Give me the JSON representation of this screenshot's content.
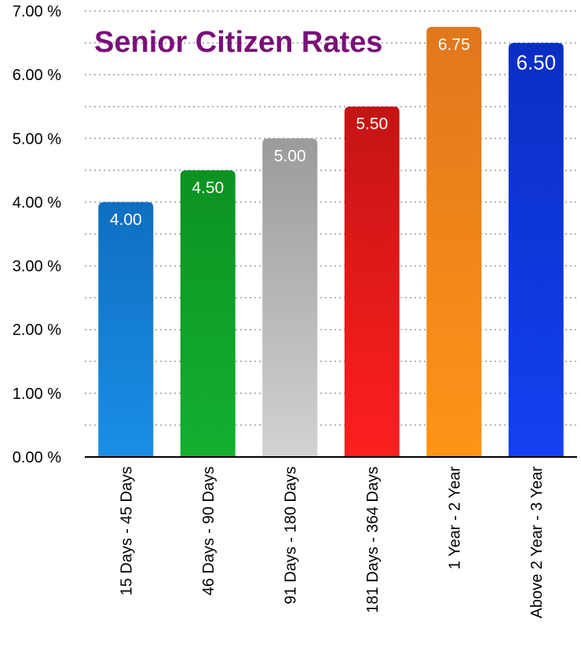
{
  "chart_data": {
    "type": "bar",
    "title": "Senior Citizen Rates",
    "title_color": "#7a0f7a",
    "categories": [
      "15 Days - 45 Days",
      "46 Days - 90 Days",
      "91 Days - 180 Days",
      "181 Days - 364 Days",
      "1 Year - 2 Year",
      "Above 2 Year - 3 Year"
    ],
    "values": [
      4.0,
      4.5,
      5.0,
      5.5,
      6.75,
      6.5
    ],
    "value_labels": [
      "4.00",
      "4.50",
      "5.00",
      "5.50",
      "6.75",
      "6.50"
    ],
    "bar_colors": [
      [
        "#0f6fc0",
        "#1a8ee6"
      ],
      [
        "#0c9222",
        "#13b030"
      ],
      [
        "#9b9b9b",
        "#d2d2d2"
      ],
      [
        "#c41414",
        "#ff1f1f"
      ],
      [
        "#e0771c",
        "#ff9418"
      ],
      [
        "#0a2ec4",
        "#1440f0"
      ]
    ],
    "y_ticks": [
      "0.00 %",
      "1.00 %",
      "2.00 %",
      "3.00 %",
      "4.00 %",
      "5.00 %",
      "6.00 %",
      "7.00 %"
    ],
    "ylim": [
      0,
      7
    ],
    "grid": true,
    "legend": "none"
  }
}
